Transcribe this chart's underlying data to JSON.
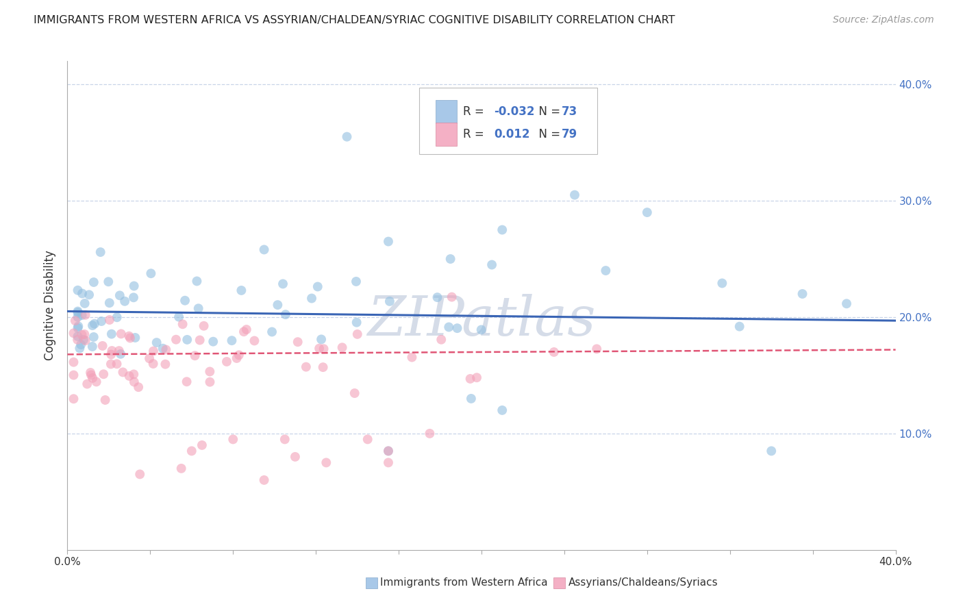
{
  "title": "IMMIGRANTS FROM WESTERN AFRICA VS ASSYRIAN/CHALDEAN/SYRIAC COGNITIVE DISABILITY CORRELATION CHART",
  "source": "Source: ZipAtlas.com",
  "ylabel": "Cognitive Disability",
  "xlim": [
    0.0,
    0.4
  ],
  "ylim": [
    0.0,
    0.42
  ],
  "yticks": [
    0.1,
    0.2,
    0.3,
    0.4
  ],
  "ytick_labels": [
    "10.0%",
    "20.0%",
    "30.0%",
    "40.0%"
  ],
  "xtick_count": 10,
  "blue_R": "-0.032",
  "blue_N": "73",
  "pink_R": "0.012",
  "pink_N": "79",
  "blue_line_y_start": 0.205,
  "blue_line_y_end": 0.197,
  "pink_line_y_start": 0.168,
  "pink_line_y_end": 0.172,
  "dot_color_blue": "#92BEE0",
  "dot_color_pink": "#F2A0B8",
  "line_color_blue": "#3A65B5",
  "line_color_pink": "#E05575",
  "bg_color": "#FFFFFF",
  "grid_color": "#C8D4E8",
  "watermark": "ZIPatlas",
  "watermark_color": "#D5DCE8",
  "scatter_alpha": 0.6,
  "scatter_size": 100,
  "legend_label_blue": "Immigrants from Western Africa",
  "legend_label_pink": "Assyrians/Chaldeans/Syriacs"
}
